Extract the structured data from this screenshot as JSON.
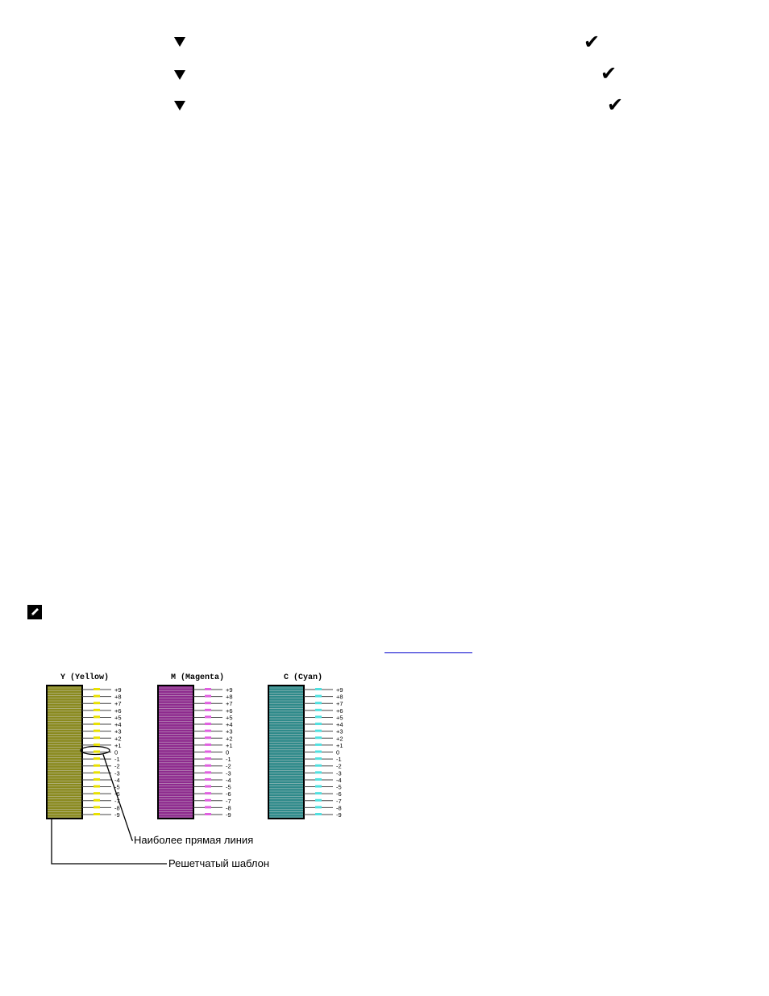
{
  "steps": [
    {
      "arrow_icon": "down-triangle-icon",
      "check_icon": "checkmark-icon"
    },
    {
      "arrow_icon": "down-triangle-icon",
      "check_icon": "checkmark-icon"
    },
    {
      "arrow_icon": "down-triangle-icon",
      "check_icon": "checkmark-icon"
    }
  ],
  "note": {
    "icon": "note-pencil-icon"
  },
  "figure": {
    "colors": {
      "yellow": "#8a8a1e",
      "magenta": "#8e2a8e",
      "cyan": "#2e8a8a",
      "frame": "#000000"
    },
    "panels": [
      {
        "label": "Y (Yellow)",
        "accent": "#e8e000"
      },
      {
        "label": "M (Magenta)",
        "accent": "#e060e0"
      },
      {
        "label": "C (Cyan)",
        "accent": "#50e0e0"
      }
    ],
    "scale": [
      "+9",
      "+8",
      "+7",
      "+6",
      "+5",
      "+4",
      "+3",
      "+2",
      "+1",
      "0",
      "-1",
      "-2",
      "-3",
      "-4",
      "-5",
      "-6",
      "-7",
      "-8",
      "-9"
    ],
    "callout_straight": "Наиболее прямая линия",
    "callout_grid": "Решетчатый шаблон"
  }
}
